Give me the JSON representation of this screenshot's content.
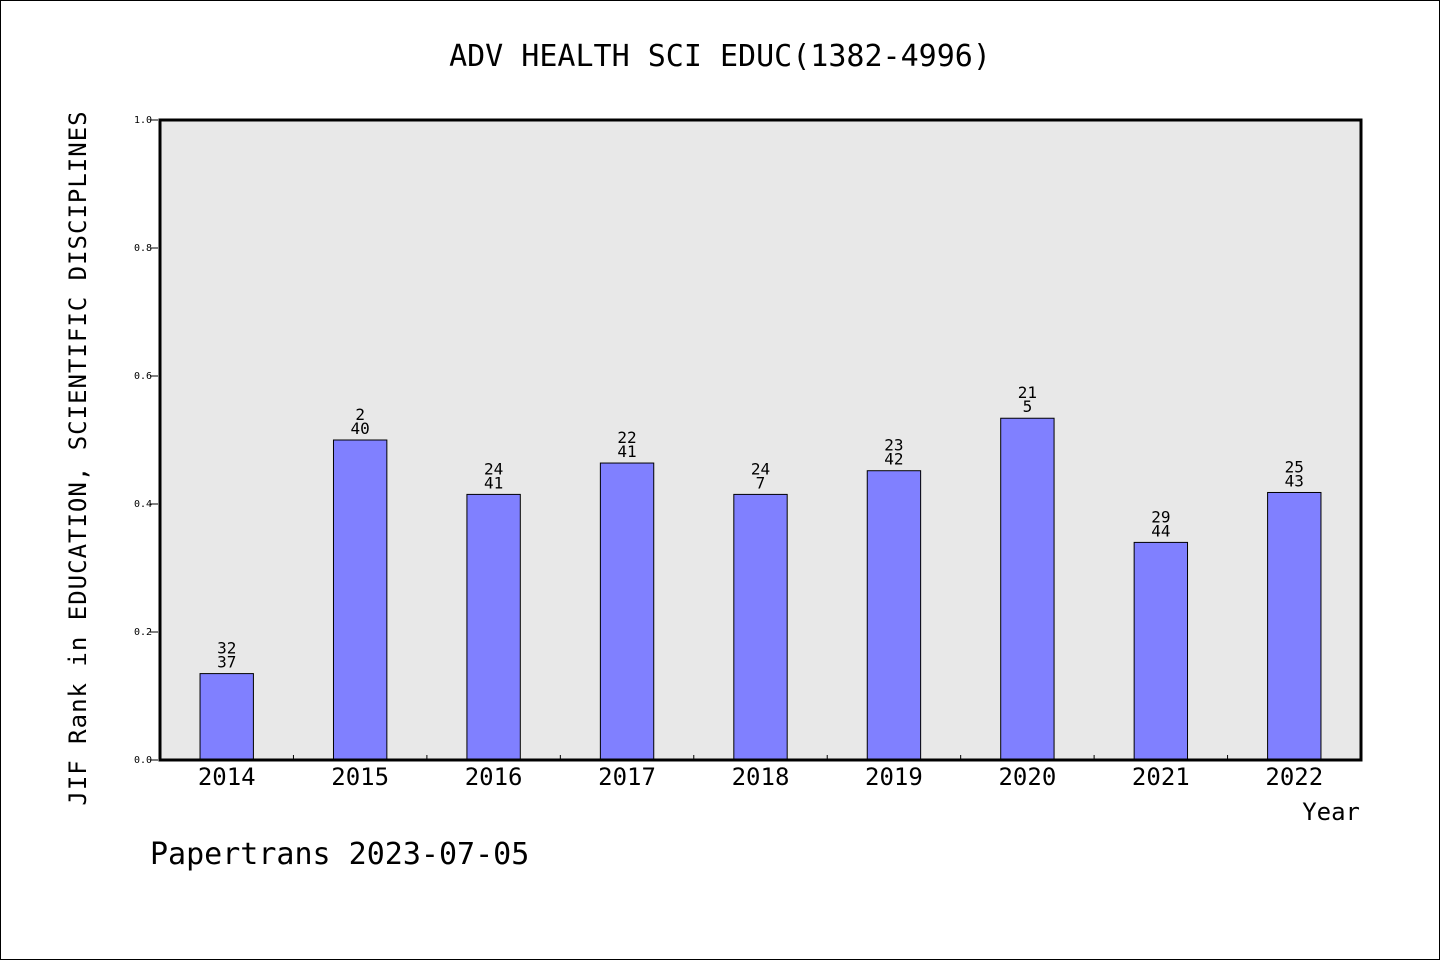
{
  "chart_data": {
    "type": "bar",
    "title": "ADV HEALTH SCI EDUC(1382-4996)",
    "xlabel": "Year",
    "ylabel": "JIF Rank in EDUCATION, SCIENTIFIC DISCIPLINES",
    "ylim": [
      0.0,
      1.0
    ],
    "yticks": [
      "0.0",
      "0.2",
      "0.4",
      "0.6",
      "0.8",
      "1.0"
    ],
    "categories": [
      "2014",
      "2015",
      "2016",
      "2017",
      "2018",
      "2019",
      "2020",
      "2021",
      "2022"
    ],
    "values": [
      0.135,
      0.5,
      0.415,
      0.464,
      0.415,
      0.452,
      0.534,
      0.34,
      0.418
    ],
    "labels_top": [
      "32",
      "2",
      "24",
      "22",
      "24",
      "23",
      "21",
      "29",
      "25"
    ],
    "labels_bottom": [
      "37",
      "40",
      "41",
      "41",
      "7",
      "42",
      "5",
      "44",
      "43"
    ],
    "grid": false,
    "colors": {
      "bar": "#8080ff",
      "plot_bg": "#e8e8e8",
      "axis": "#000000"
    }
  },
  "footer": "Papertrans 2023-07-05"
}
